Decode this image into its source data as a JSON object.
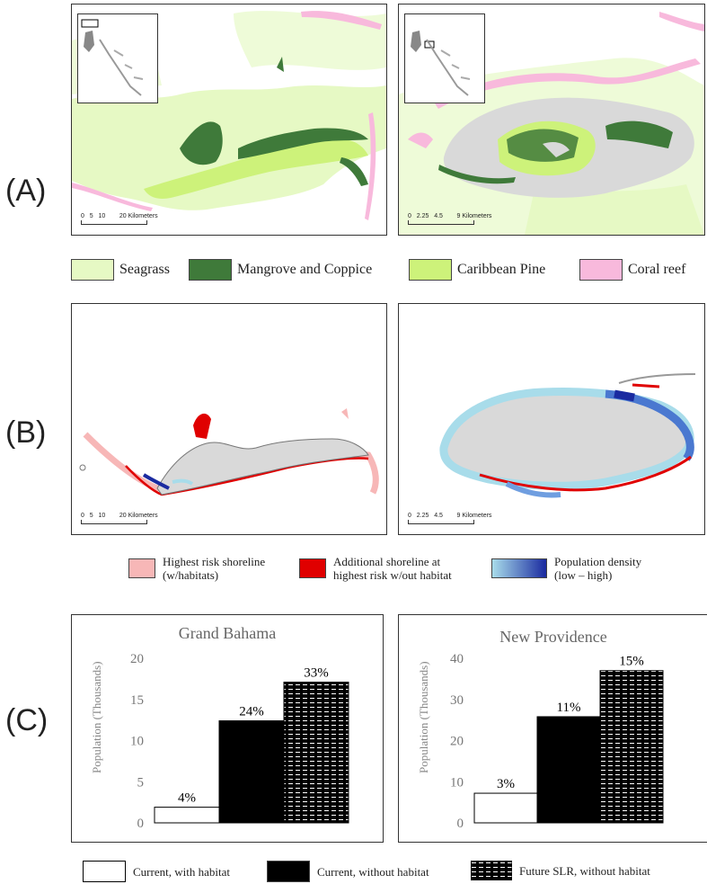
{
  "panels": {
    "a": "(A)",
    "b": "(B)",
    "c": "(C)"
  },
  "scalebars": {
    "gb_ticks": [
      "0",
      "5",
      "10",
      "20 Kilometers"
    ],
    "np_ticks": [
      "0",
      "2.25",
      "4.5",
      "9 Kilometers"
    ]
  },
  "legend_habitat": {
    "seagrass": "Seagrass",
    "mangrove": "Mangrove and Coppice",
    "pine": "Caribbean Pine",
    "coral": "Coral reef"
  },
  "legend_risk": {
    "highest": [
      "Highest risk shoreline",
      "(w/habitats)"
    ],
    "additional": [
      "Additional shoreline at",
      "highest risk w/out habitat"
    ],
    "population": [
      "Population density",
      "(low – high)"
    ]
  },
  "colors": {
    "seagrass": "#e6f9c4",
    "mangrove": "#3f7a3a",
    "pine": "#cdf27a",
    "coral": "#f8b9dc",
    "land": "#d9d9d9",
    "risk_habitat": "#f7b7b7",
    "risk_no_habitat": "#e00000",
    "pop_low": "#a8dcea",
    "pop_high": "#1a2aa0"
  },
  "chart_data": [
    {
      "type": "bar",
      "title": "Grand Bahama",
      "ylabel": "Population  (Thousands)",
      "ylim": [
        0,
        20
      ],
      "yticks": [
        0,
        5,
        10,
        15,
        20
      ],
      "categories": [
        "Current, with habitat",
        "Current, without habitat",
        "Future SLR, without habitat"
      ],
      "values": [
        1.9,
        12.4,
        17.1
      ],
      "labels": [
        "4%",
        "24%",
        "33%"
      ]
    },
    {
      "type": "bar",
      "title": "New Providence",
      "ylabel": "Population  (Thousands)",
      "ylim": [
        0,
        40
      ],
      "yticks": [
        0,
        10,
        20,
        30,
        40
      ],
      "categories": [
        "Current, with habitat",
        "Current, without habitat",
        "Future SLR, without habitat"
      ],
      "values": [
        7.2,
        25.8,
        37.0
      ],
      "labels": [
        "3%",
        "11%",
        "15%"
      ]
    }
  ],
  "legend_bars": {
    "with_habitat": "Current, with habitat",
    "without_habitat": "Current, without habitat",
    "future": "Future SLR, without habitat"
  }
}
